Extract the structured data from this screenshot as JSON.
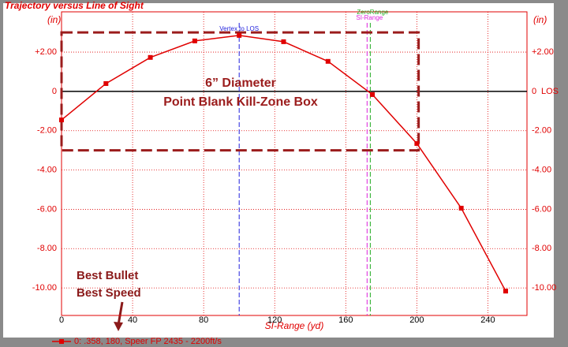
{
  "chart_data": {
    "type": "line",
    "title": "Trajectory versus Line of Sight",
    "y_unit": "(in)",
    "y2_unit": "(in)",
    "x_label": "SI-Range (yd)",
    "los_label": "LOS",
    "xlim": [
      0,
      262
    ],
    "ylim": [
      -11.4,
      4.05
    ],
    "xticks": [
      0,
      40,
      80,
      120,
      160,
      200,
      240
    ],
    "yticks": [
      {
        "value": 2,
        "label": "+2.00"
      },
      0,
      {
        "value": -2,
        "label": "-2.00"
      },
      {
        "value": -4,
        "label": "-4.00"
      },
      {
        "value": -6,
        "label": "-6.00"
      },
      {
        "value": -8,
        "label": "-8.00"
      },
      {
        "value": -10,
        "label": "-10.00"
      }
    ],
    "grid": true,
    "series": [
      {
        "name": "0: .358, 180, Speer FP 2435 - 2200ft/s",
        "color": "#e00000",
        "x": [
          0,
          25,
          50,
          75,
          100,
          125,
          150,
          175,
          200,
          225,
          250
        ],
        "values": [
          -1.45,
          0.4,
          1.73,
          2.57,
          2.85,
          2.53,
          1.53,
          -0.16,
          -2.65,
          -5.94,
          -10.16
        ]
      }
    ],
    "vlines": [
      {
        "label": "Vertex to LOS",
        "x": 100,
        "color": "#2222dd"
      },
      {
        "label": "ZeroRange",
        "x": 173.8,
        "color": "#22aa22"
      },
      {
        "label": "SI-Range",
        "x": 172,
        "color": "#dd22dd"
      }
    ],
    "box": {
      "x": [
        0,
        201
      ],
      "y": [
        -3,
        3
      ],
      "color": "#9b1c1c",
      "lines": [
        "6” Diameter",
        "Point Blank Kill-Zone Box"
      ]
    },
    "note": [
      "Best Bullet",
      "Best Speed"
    ]
  }
}
